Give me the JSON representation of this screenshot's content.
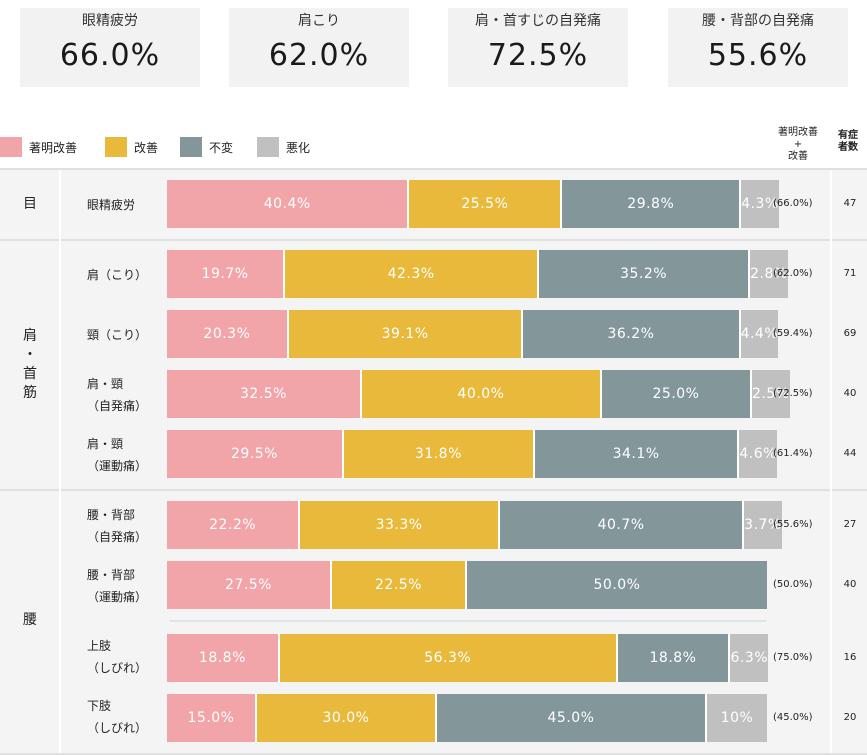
{
  "summary_cards": [
    {
      "label": "眼精疲労",
      "value": "66.0%"
    },
    {
      "label": "肩こり",
      "value": "62.0%"
    },
    {
      "label": "肩・首すじの自発痛",
      "value": "72.5%"
    },
    {
      "label": "腰・背部の自発痛",
      "value": "55.6%"
    }
  ],
  "legend": [
    {
      "label": "著明改善",
      "color": "#f2a5a8"
    },
    {
      "label": "改善",
      "color": "#e8b93a"
    },
    {
      "label": "不変",
      "color": "#83979b"
    },
    {
      "label": "悪化",
      "color": "#c0c0c0"
    }
  ],
  "column_headers": {
    "total": [
      "著明改善",
      "+",
      "改善"
    ],
    "n": [
      "有症",
      "者数"
    ]
  },
  "groups": [
    {
      "label": [
        "目"
      ]
    },
    {
      "label": [
        "肩",
        "・",
        "首",
        "筋"
      ]
    },
    {
      "label": [
        "腰"
      ]
    }
  ],
  "chart_data": {
    "type": "bar",
    "stacked": true,
    "horizontal": true,
    "xlim": [
      0,
      100
    ],
    "series_names": [
      "著明改善",
      "改善",
      "不変",
      "悪化"
    ],
    "rows": [
      {
        "group": "目",
        "label": [
          "眼精疲労"
        ],
        "values": [
          40.4,
          25.5,
          29.8,
          4.3
        ],
        "labels": [
          "40.4%",
          "25.5%",
          "29.8%",
          "4.3%"
        ],
        "total": "(66.0%)",
        "n": "47"
      },
      {
        "group": "肩・首筋",
        "label": [
          "肩（こり）"
        ],
        "values": [
          19.7,
          42.3,
          35.2,
          2.8
        ],
        "labels": [
          "19.7%",
          "42.3%",
          "35.2%",
          "2.8%"
        ],
        "total": "(62.0%)",
        "n": "71"
      },
      {
        "group": "肩・首筋",
        "label": [
          "頸（こり）"
        ],
        "values": [
          20.3,
          39.1,
          36.2,
          4.4
        ],
        "labels": [
          "20.3%",
          "39.1%",
          "36.2%",
          "4.4%"
        ],
        "total": "(59.4%)",
        "n": "69"
      },
      {
        "group": "肩・首筋",
        "label": [
          "肩・頸",
          "（自発痛）"
        ],
        "values": [
          32.5,
          40.0,
          25.0,
          2.5
        ],
        "labels": [
          "32.5%",
          "40.0%",
          "25.0%",
          "2.5%"
        ],
        "total": "(72.5%)",
        "n": "40"
      },
      {
        "group": "肩・首筋",
        "label": [
          "肩・頸",
          "（運動痛）"
        ],
        "values": [
          29.5,
          31.8,
          34.1,
          4.6
        ],
        "labels": [
          "29.5%",
          "31.8%",
          "34.1%",
          "4.6%"
        ],
        "total": "(61.4%)",
        "n": "44"
      },
      {
        "group": "腰",
        "label": [
          "腰・背部",
          "（自発痛）"
        ],
        "values": [
          22.2,
          33.3,
          40.7,
          3.7
        ],
        "labels": [
          "22.2%",
          "33.3%",
          "40.7%",
          "3.7%"
        ],
        "total": "(55.6%)",
        "n": "27"
      },
      {
        "group": "腰",
        "label": [
          "腰・背部",
          "（運動痛）"
        ],
        "values": [
          27.5,
          22.5,
          50.0,
          0
        ],
        "labels": [
          "27.5%",
          "22.5%",
          "50.0%",
          ""
        ],
        "total": "(50.0%)",
        "n": "40"
      },
      {
        "group": "腰",
        "label": [
          "上肢",
          "（しびれ）"
        ],
        "values": [
          18.8,
          56.3,
          18.8,
          6.3
        ],
        "labels": [
          "18.8%",
          "56.3%",
          "18.8%",
          "6.3%"
        ],
        "total": "(75.0%)",
        "n": "16"
      },
      {
        "group": "腰",
        "label": [
          "下肢",
          "（しびれ）"
        ],
        "values": [
          15.0,
          30.0,
          45.0,
          10.0
        ],
        "labels": [
          "15.0%",
          "30.0%",
          "45.0%",
          "10%"
        ],
        "total": "(45.0%)",
        "n": "20"
      }
    ]
  }
}
